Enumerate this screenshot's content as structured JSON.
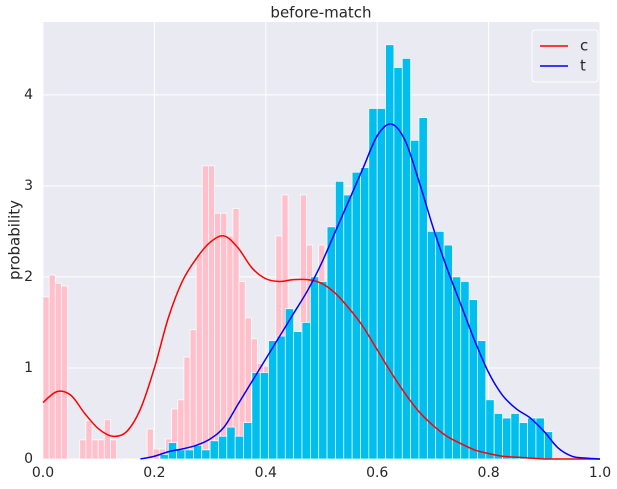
{
  "chart_data": {
    "type": "histogram",
    "title": "before-match",
    "ylabel": "probability",
    "xlim": [
      0,
      1
    ],
    "ylim": [
      0,
      4.8
    ],
    "xticks": [
      {
        "value": 0,
        "label": "0.0"
      },
      0.2,
      0.4,
      0.6,
      0.8,
      {
        "value": 1,
        "label": "1.0"
      }
    ],
    "yticks": [
      0,
      1,
      2,
      3,
      4
    ],
    "grid": true,
    "legend_position": "upper right",
    "histograms": [
      {
        "color": "#ffc0cb",
        "bins": [
          0,
          0.011,
          0.022,
          0.033,
          0.044,
          0.055,
          0.066,
          0.077,
          0.088,
          0.099,
          0.11,
          0.121,
          0.132,
          0.143,
          0.154,
          0.165,
          0.176,
          0.187,
          0.198,
          0.209,
          0.22,
          0.231,
          0.242,
          0.253,
          0.264,
          0.275,
          0.286,
          0.297,
          0.308,
          0.319,
          0.33,
          0.341,
          0.352,
          0.363,
          0.374,
          0.385,
          0.396,
          0.407,
          0.418,
          0.429,
          0.44,
          0.451,
          0.462,
          0.473,
          0.484,
          0.495,
          0.506,
          0.517,
          0.528,
          0.539,
          0.55
        ],
        "values": [
          1.78,
          2.02,
          1.93,
          1.9,
          0,
          0,
          0.21,
          0.42,
          0.21,
          0.21,
          0.43,
          0.21,
          0,
          0,
          0,
          0,
          0,
          0.33,
          0.11,
          0.11,
          0.22,
          0.55,
          0.65,
          1.12,
          1.42,
          2.25,
          3.22,
          3.22,
          2.7,
          2.7,
          2.45,
          2.75,
          1.95,
          1.55,
          1.32,
          1.05,
          1.02,
          1.3,
          2.45,
          2.9,
          1.55,
          1.35,
          2.9,
          2.35,
          1.35,
          2.35,
          1.9,
          1.5,
          1.95,
          1.6
        ]
      },
      {
        "color": "#00bfef",
        "bins": [
          0.21,
          0.225,
          0.24,
          0.255,
          0.27,
          0.285,
          0.3,
          0.315,
          0.33,
          0.345,
          0.36,
          0.375,
          0.39,
          0.405,
          0.42,
          0.435,
          0.45,
          0.465,
          0.48,
          0.495,
          0.51,
          0.525,
          0.54,
          0.555,
          0.57,
          0.585,
          0.6,
          0.615,
          0.63,
          0.645,
          0.66,
          0.675,
          0.69,
          0.705,
          0.72,
          0.735,
          0.75,
          0.765,
          0.78,
          0.795,
          0.81,
          0.825,
          0.84,
          0.855,
          0.87,
          0.885,
          0.9,
          0.915
        ],
        "values": [
          0.05,
          0.18,
          0.1,
          0.1,
          0.15,
          0.1,
          0.2,
          0.25,
          0.35,
          0.25,
          0.4,
          0.95,
          0.95,
          1.3,
          1.35,
          1.65,
          1.4,
          1.5,
          2.0,
          1.95,
          2.55,
          3.05,
          2.9,
          3.15,
          3.2,
          3.85,
          3.85,
          4.55,
          4.3,
          4.4,
          3.5,
          3.75,
          2.5,
          2.5,
          2.35,
          2.0,
          1.95,
          1.75,
          1.3,
          0.65,
          0.5,
          0.45,
          0.5,
          0.4,
          0.45,
          0.45,
          0.3
        ]
      }
    ],
    "x": [
      0,
      0.025,
      0.05,
      0.075,
      0.1,
      0.125,
      0.15,
      0.175,
      0.2,
      0.225,
      0.25,
      0.275,
      0.3,
      0.325,
      0.35,
      0.375,
      0.4,
      0.425,
      0.45,
      0.475,
      0.5,
      0.525,
      0.55,
      0.575,
      0.6,
      0.625,
      0.65,
      0.675,
      0.7,
      0.725,
      0.75,
      0.775,
      0.8,
      0.825,
      0.85,
      0.875,
      0.9,
      0.925,
      0.95,
      0.975,
      1
    ],
    "series": [
      {
        "name": "c",
        "color": "#ff0000",
        "values": [
          0.62,
          0.74,
          0.7,
          0.5,
          0.33,
          0.25,
          0.3,
          0.55,
          1.0,
          1.55,
          1.95,
          2.2,
          2.38,
          2.45,
          2.32,
          2.1,
          1.98,
          1.95,
          1.97,
          1.97,
          1.93,
          1.82,
          1.65,
          1.45,
          1.2,
          0.95,
          0.72,
          0.52,
          0.37,
          0.25,
          0.17,
          0.1,
          0.06,
          0.03,
          0.02,
          0.01,
          0,
          0,
          0,
          0,
          0
        ]
      },
      {
        "name": "t",
        "color": "#0000ff",
        "values": [
          null,
          null,
          null,
          null,
          null,
          null,
          null,
          0,
          0.03,
          0.08,
          0.11,
          0.15,
          0.22,
          0.35,
          0.6,
          0.85,
          1.1,
          1.35,
          1.6,
          1.85,
          2.15,
          2.5,
          2.85,
          3.2,
          3.55,
          3.68,
          3.5,
          3.05,
          2.55,
          2.1,
          1.7,
          1.3,
          0.95,
          0.7,
          0.55,
          0.45,
          0.3,
          0.12,
          0.03,
          0.01,
          0
        ]
      }
    ]
  }
}
